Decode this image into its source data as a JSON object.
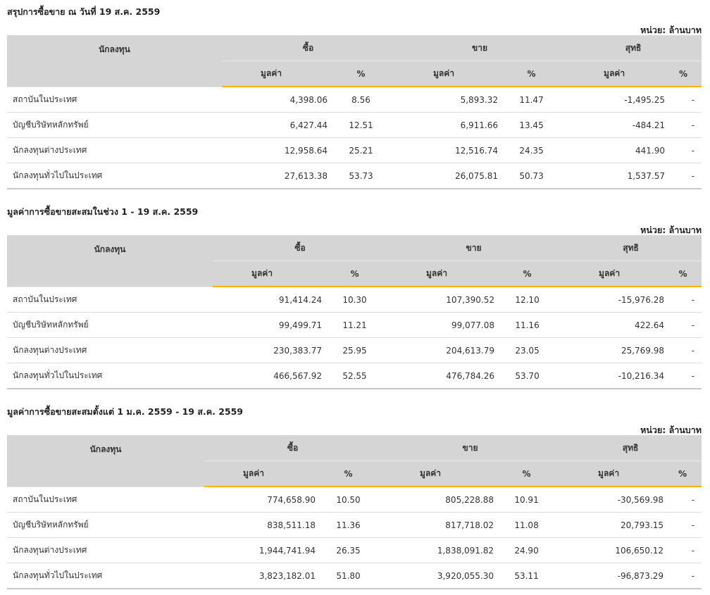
{
  "unit_label": "หน่วย: ล้านบาท",
  "headers": {
    "investor": "นักลงทุน",
    "buy": "ซื้อ",
    "sell": "ขาย",
    "net": "สุทธิ",
    "value": "มูลค่า",
    "percent": "%"
  },
  "sections": [
    {
      "title": "สรุปการซื้อขาย ณ วันที่ 19 ส.ค. 2559",
      "rows": [
        {
          "name": "สถาบันในประเทศ",
          "buy": "4,398.06",
          "buy_pct": "8.56",
          "sell": "5,893.32",
          "sell_pct": "11.47",
          "net": "-1,495.25",
          "net_pct": "-"
        },
        {
          "name": "บัญชีบริษัทหลักทรัพย์",
          "buy": "6,427.44",
          "buy_pct": "12.51",
          "sell": "6,911.66",
          "sell_pct": "13.45",
          "net": "-484.21",
          "net_pct": "-"
        },
        {
          "name": "นักลงทุนต่างประเทศ",
          "buy": "12,958.64",
          "buy_pct": "25.21",
          "sell": "12,516.74",
          "sell_pct": "24.35",
          "net": "441.90",
          "net_pct": "-"
        },
        {
          "name": "นักลงทุนทั่วไปในประเทศ",
          "buy": "27,613.38",
          "buy_pct": "53.73",
          "sell": "26,075.81",
          "sell_pct": "50.73",
          "net": "1,537.57",
          "net_pct": "-"
        }
      ]
    },
    {
      "title": "มูลค่าการซื้อขายสะสมในช่วง 1 - 19 ส.ค. 2559",
      "rows": [
        {
          "name": "สถาบันในประเทศ",
          "buy": "91,414.24",
          "buy_pct": "10.30",
          "sell": "107,390.52",
          "sell_pct": "12.10",
          "net": "-15,976.28",
          "net_pct": "-"
        },
        {
          "name": "บัญชีบริษัทหลักทรัพย์",
          "buy": "99,499.71",
          "buy_pct": "11.21",
          "sell": "99,077.08",
          "sell_pct": "11.16",
          "net": "422.64",
          "net_pct": "-"
        },
        {
          "name": "นักลงทุนต่างประเทศ",
          "buy": "230,383.77",
          "buy_pct": "25.95",
          "sell": "204,613.79",
          "sell_pct": "23.05",
          "net": "25,769.98",
          "net_pct": "-"
        },
        {
          "name": "นักลงทุนทั่วไปในประเทศ",
          "buy": "466,567.92",
          "buy_pct": "52.55",
          "sell": "476,784.26",
          "sell_pct": "53.70",
          "net": "-10,216.34",
          "net_pct": "-"
        }
      ]
    },
    {
      "title": "มูลค่าการซื้อขายสะสมตั้งแต่ 1 ม.ค. 2559 - 19 ส.ค. 2559",
      "rows": [
        {
          "name": "สถาบันในประเทศ",
          "buy": "774,658.90",
          "buy_pct": "10.50",
          "sell": "805,228.88",
          "sell_pct": "10.91",
          "net": "-30,569.98",
          "net_pct": "-"
        },
        {
          "name": "บัญชีบริษัทหลักทรัพย์",
          "buy": "838,511.18",
          "buy_pct": "11.36",
          "sell": "817,718.02",
          "sell_pct": "11.08",
          "net": "20,793.15",
          "net_pct": "-"
        },
        {
          "name": "นักลงทุนต่างประเทศ",
          "buy": "1,944,741.94",
          "buy_pct": "26.35",
          "sell": "1,838,091.82",
          "sell_pct": "24.90",
          "net": "106,650.12",
          "net_pct": "-"
        },
        {
          "name": "นักลงทุนทั่วไปในประเทศ",
          "buy": "3,823,182.01",
          "buy_pct": "51.80",
          "sell": "3,920,055.30",
          "sell_pct": "53.11",
          "net": "-96,873.29",
          "net_pct": "-"
        }
      ]
    }
  ]
}
